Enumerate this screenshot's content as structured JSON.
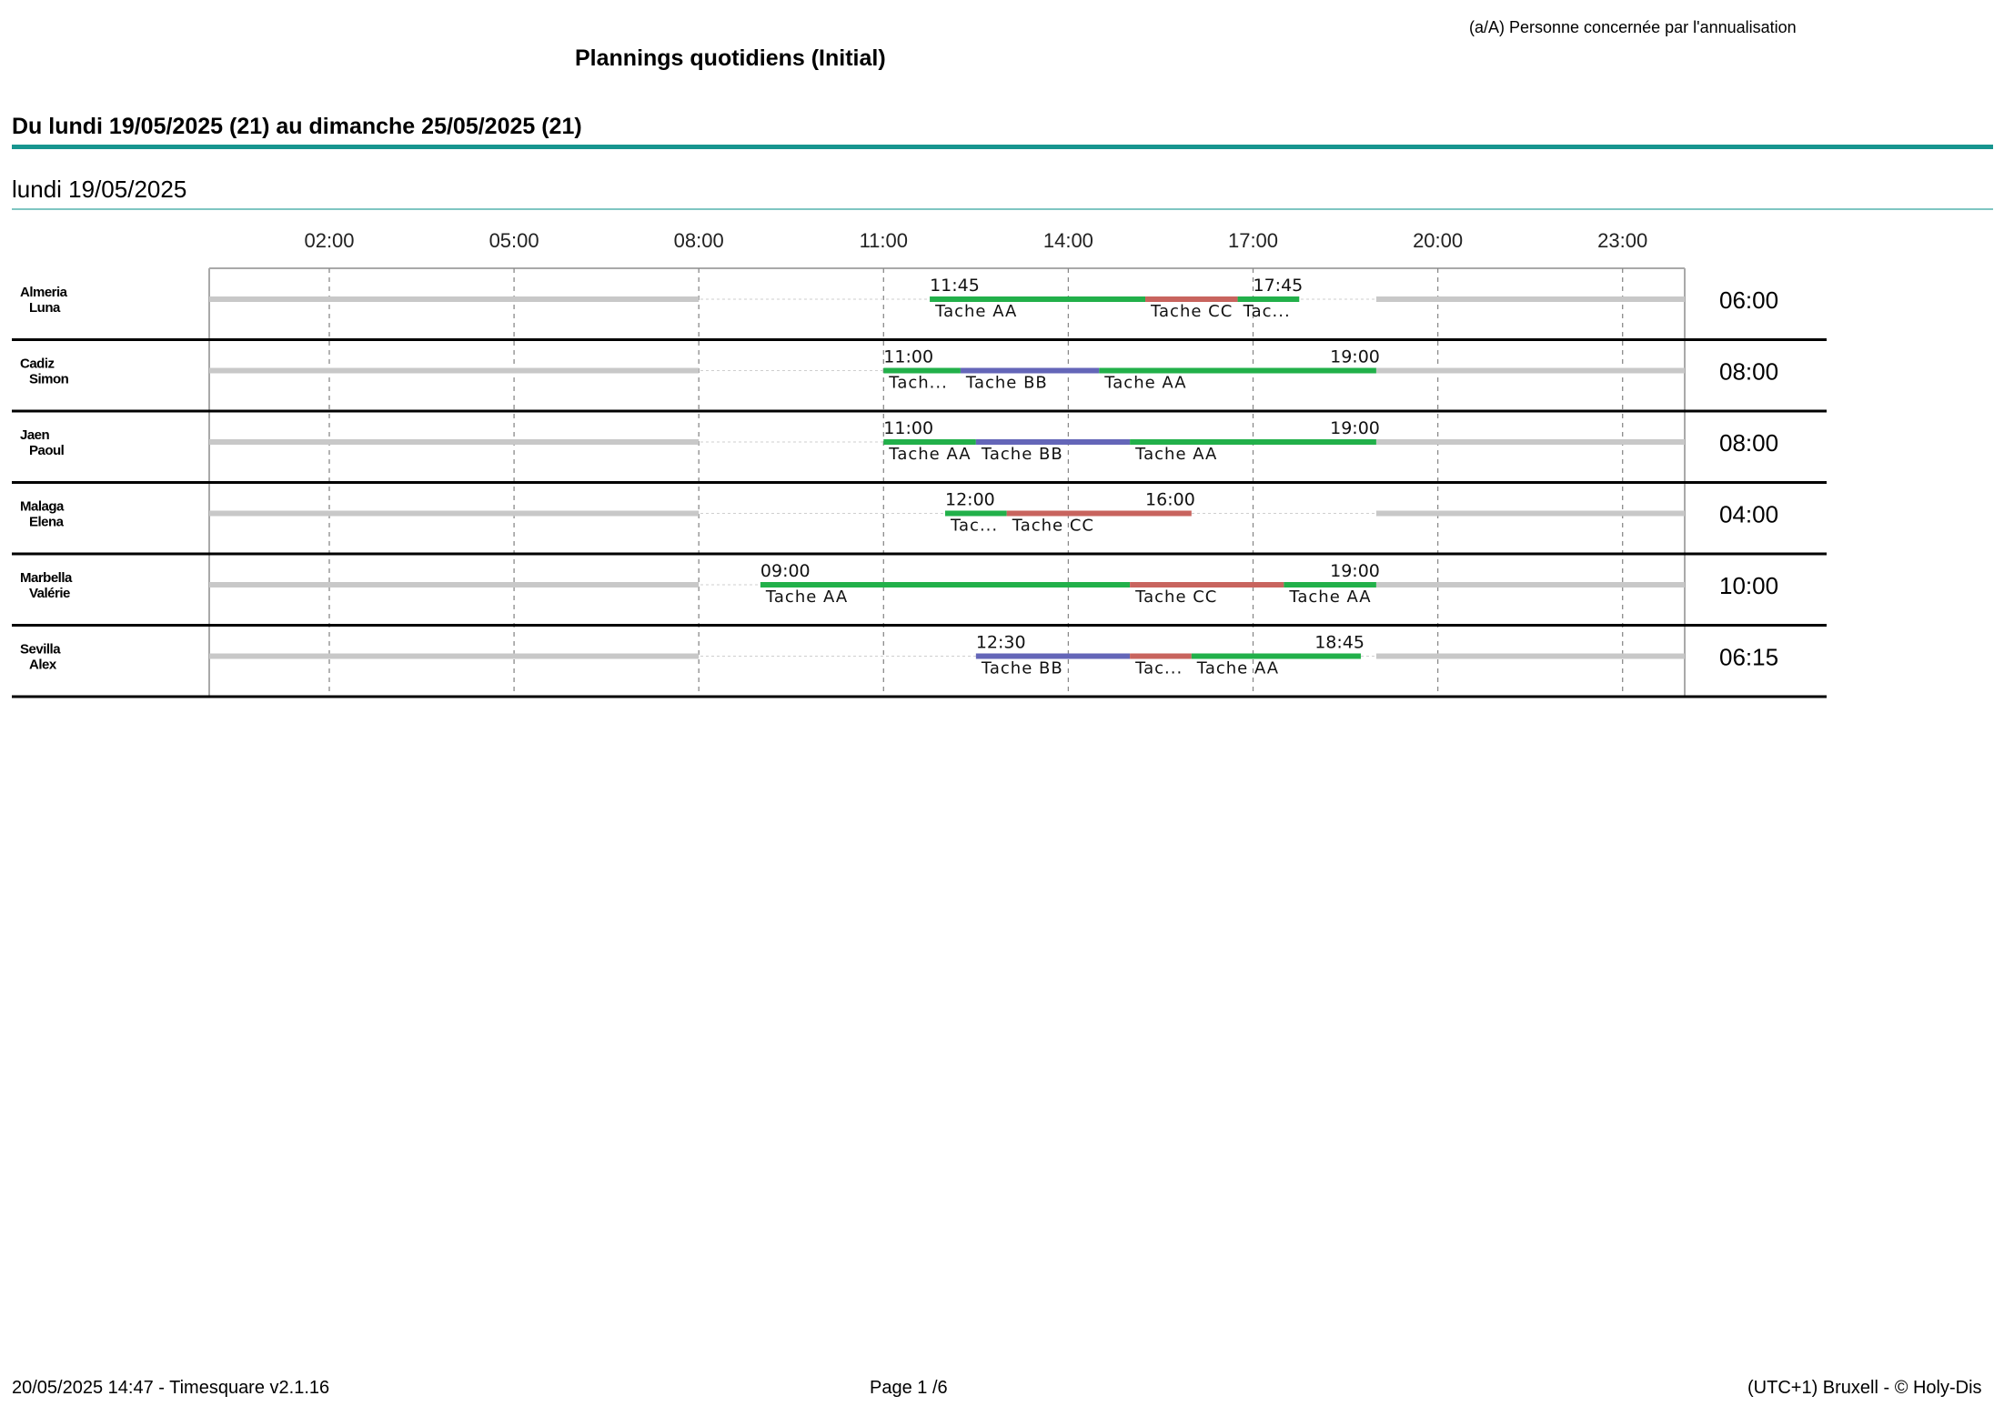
{
  "header": {
    "note": "(a/A) Personne concernée par l'annualisation",
    "title": "Plannings quotidiens (Initial)",
    "week": "Du lundi 19/05/2025 (21) au dimanche 25/05/2025 (21)",
    "day": "lundi 19/05/2025"
  },
  "footer": {
    "left": "20/05/2025 14:47 - Timesquare v2.1.16",
    "center": "Page 1 /6",
    "right": "(UTC+1) Bruxell - © Holy-Dis"
  },
  "colors": {
    "task_aa": "#22b04a",
    "task_bb": "#6466b8",
    "task_cc": "#c8645e",
    "off": "#c8c8c8",
    "accent": "#17958f"
  },
  "chart_data": {
    "type": "gantt",
    "time_ticks": [
      "02:00",
      "05:00",
      "08:00",
      "11:00",
      "14:00",
      "17:00",
      "20:00",
      "23:00"
    ],
    "rows": [
      {
        "name_line1": "Almeria",
        "name_line2": "Luna",
        "total": "06:00",
        "start_label": "11:45",
        "end_label": "17:45",
        "segments": [
          {
            "task": "Tache AA",
            "label": "Tache AA",
            "start": 11.75,
            "end": 15.25,
            "color": "task_aa"
          },
          {
            "task": "Tache CC",
            "label": "Tache CC",
            "start": 15.25,
            "end": 16.75,
            "color": "task_cc"
          },
          {
            "task": "Tache AA",
            "label": "Tac...",
            "start": 16.75,
            "end": 17.75,
            "color": "task_aa"
          }
        ]
      },
      {
        "name_line1": "Cadiz",
        "name_line2": "Simon",
        "total": "08:00",
        "start_label": "11:00",
        "end_label": "19:00",
        "segments": [
          {
            "task": "Tache AA",
            "label": "Tach...",
            "start": 11.0,
            "end": 12.25,
            "color": "task_aa"
          },
          {
            "task": "Tache BB",
            "label": "Tache BB",
            "start": 12.25,
            "end": 14.5,
            "color": "task_bb"
          },
          {
            "task": "Tache AA",
            "label": "Tache AA",
            "start": 14.5,
            "end": 19.0,
            "color": "task_aa"
          }
        ]
      },
      {
        "name_line1": "Jaen",
        "name_line2": "Paoul",
        "total": "08:00",
        "start_label": "11:00",
        "end_label": "19:00",
        "segments": [
          {
            "task": "Tache AA",
            "label": "Tache AA",
            "start": 11.0,
            "end": 12.5,
            "color": "task_aa"
          },
          {
            "task": "Tache BB",
            "label": "Tache BB",
            "start": 12.5,
            "end": 15.0,
            "color": "task_bb"
          },
          {
            "task": "Tache AA",
            "label": "Tache AA",
            "start": 15.0,
            "end": 19.0,
            "color": "task_aa"
          }
        ]
      },
      {
        "name_line1": "Malaga",
        "name_line2": "Elena",
        "total": "04:00",
        "start_label": "12:00",
        "end_label": "16:00",
        "segments": [
          {
            "task": "Tache AA",
            "label": "Tac...",
            "start": 12.0,
            "end": 13.0,
            "color": "task_aa"
          },
          {
            "task": "Tache CC",
            "label": "Tache CC",
            "start": 13.0,
            "end": 16.0,
            "color": "task_cc"
          }
        ]
      },
      {
        "name_line1": "Marbella",
        "name_line2": "Valérie",
        "total": "10:00",
        "start_label": "09:00",
        "end_label": "19:00",
        "segments": [
          {
            "task": "Tache AA",
            "label": "Tache AA",
            "start": 9.0,
            "end": 15.0,
            "color": "task_aa"
          },
          {
            "task": "Tache CC",
            "label": "Tache CC",
            "start": 15.0,
            "end": 17.5,
            "color": "task_cc"
          },
          {
            "task": "Tache AA",
            "label": "Tache AA",
            "start": 17.5,
            "end": 19.0,
            "color": "task_aa"
          }
        ]
      },
      {
        "name_line1": "Sevilla",
        "name_line2": "Alex",
        "total": "06:15",
        "start_label": "12:30",
        "end_label": "18:45",
        "segments": [
          {
            "task": "Tache BB",
            "label": "Tache BB",
            "start": 12.5,
            "end": 15.0,
            "color": "task_bb"
          },
          {
            "task": "Tache CC",
            "label": "Tac...",
            "start": 15.0,
            "end": 16.0,
            "color": "task_cc"
          },
          {
            "task": "Tache AA",
            "label": "Tache AA",
            "start": 16.0,
            "end": 18.75,
            "color": "task_aa"
          }
        ]
      }
    ]
  }
}
